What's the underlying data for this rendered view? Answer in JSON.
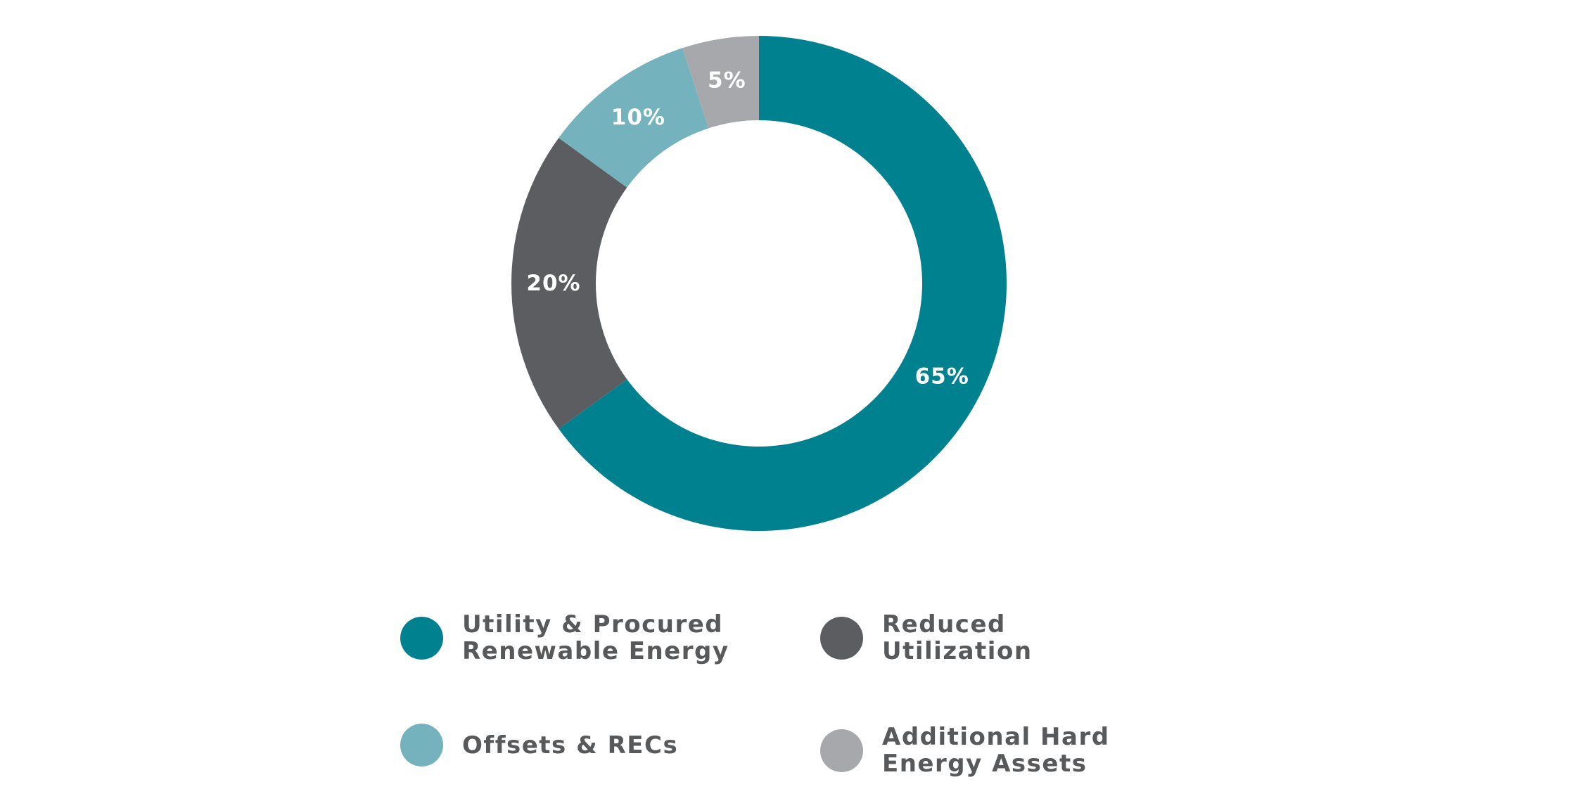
{
  "chart_data": {
    "type": "pie",
    "style": "donut",
    "categories": [
      "Utility & Procured\nRenewable Energy",
      "Reduced\nUtilization",
      "Offsets & RECs",
      "Additional Hard\nEnergy Assets"
    ],
    "values": [
      65,
      20,
      10,
      5
    ],
    "data_labels": [
      "65%",
      "20%",
      "10%",
      "5%"
    ],
    "colors": [
      "#00818f",
      "#5c5d60",
      "#74b3bd",
      "#a7a8ab"
    ],
    "legend_position": "bottom"
  }
}
